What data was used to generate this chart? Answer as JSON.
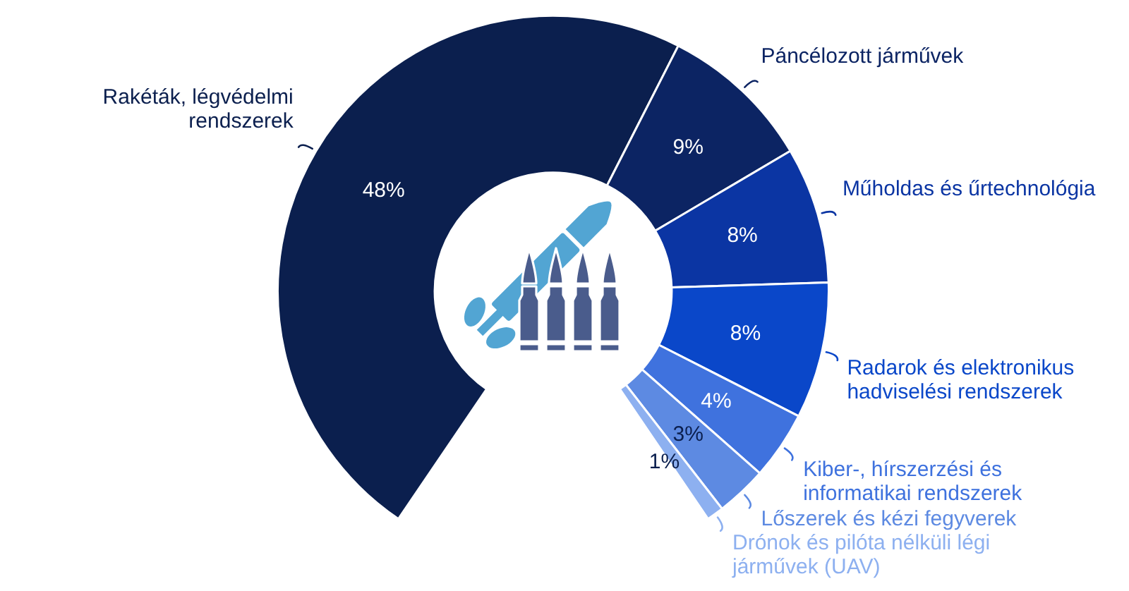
{
  "chart_data": {
    "type": "donut",
    "categories": [
      "Rakéták, légvédelmi rendszerek",
      "Páncélozott járművek",
      "Műholdas és űrtechnológia",
      "Radarok és elektronikus hadviselési rendszerek",
      "Kiber-, hírszerzési és informatikai rendszerek",
      "Lőszerek és kézi fegyverek",
      "Drónok és pilóta nélküli légi járművek (UAV)"
    ],
    "values": [
      48,
      9,
      8,
      8,
      4,
      3,
      1
    ],
    "colors": [
      "#0b1f4e",
      "#0c2463",
      "#0b35a3",
      "#0a47c9",
      "#3f72de",
      "#5d8ae2",
      "#8db0f0"
    ],
    "value_labels": [
      "48%",
      "9%",
      "8%",
      "8%",
      "4%",
      "3%",
      "1%"
    ]
  }
}
